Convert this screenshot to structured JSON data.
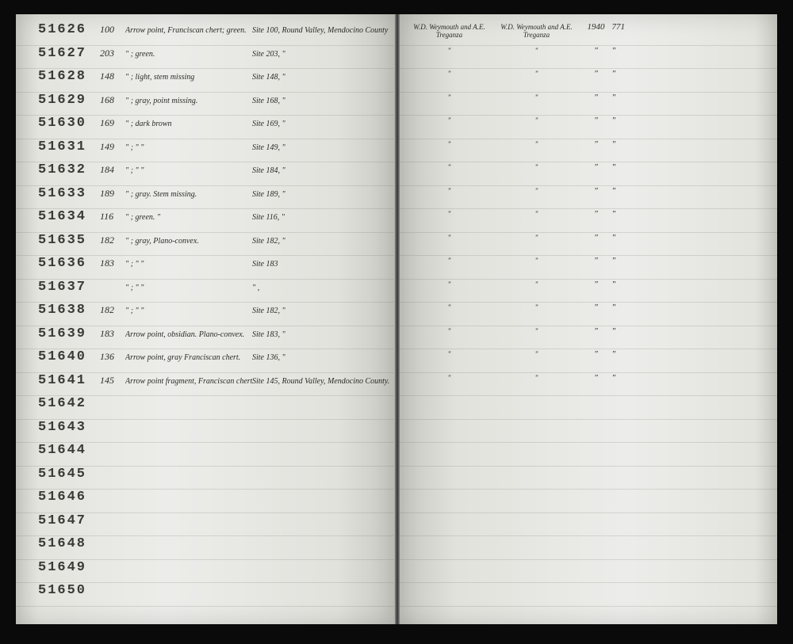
{
  "ledger": {
    "left_rows": [
      {
        "num": "51626",
        "site": "100",
        "desc": "Arrow point, Franciscan chert; green.",
        "loc": "Site 100, Round Valley, Mendocino County"
      },
      {
        "num": "51627",
        "site": "203",
        "desc": "\" ; green.",
        "loc": "Site 203, \""
      },
      {
        "num": "51628",
        "site": "148",
        "desc": "\" ; light, stem missing",
        "loc": "Site 148, \""
      },
      {
        "num": "51629",
        "site": "168",
        "desc": "\" ; gray, point missing.",
        "loc": "Site 168, \""
      },
      {
        "num": "51630",
        "site": "169",
        "desc": "\" ; dark brown",
        "loc": "Site 169, \""
      },
      {
        "num": "51631",
        "site": "149",
        "desc": "\" ; \"  \"",
        "loc": "Site 149, \""
      },
      {
        "num": "51632",
        "site": "184",
        "desc": "\" ; \"  \"",
        "loc": "Site 184, \""
      },
      {
        "num": "51633",
        "site": "189",
        "desc": "\" ; gray. Stem missing.",
        "loc": "Site 189, \""
      },
      {
        "num": "51634",
        "site": "116",
        "desc": "\" ; green. \"",
        "loc": "Site 116, \""
      },
      {
        "num": "51635",
        "site": "182",
        "desc": "\" ; gray, Plano-convex.",
        "loc": "Site 182, \""
      },
      {
        "num": "51636",
        "site": "183",
        "desc": "\" ; \"  \"",
        "loc": "Site 183"
      },
      {
        "num": "51637",
        "site": "",
        "desc": "\" ; \"  \"",
        "loc": "\"  ,"
      },
      {
        "num": "51638",
        "site": "182",
        "desc": "\" ; \"  \"",
        "loc": "Site 182, \""
      },
      {
        "num": "51639",
        "site": "183",
        "desc": "Arrow point, obsidian. Plano-convex.",
        "loc": "Site 183, \""
      },
      {
        "num": "51640",
        "site": "136",
        "desc": "Arrow point, gray Franciscan chert.",
        "loc": "Site 136, \""
      },
      {
        "num": "51641",
        "site": "145",
        "desc": "Arrow point fragment, Franciscan chert.",
        "loc": "Site 145, Round Valley, Mendocino County."
      },
      {
        "num": "51642",
        "site": "",
        "desc": "",
        "loc": ""
      },
      {
        "num": "51643",
        "site": "",
        "desc": "",
        "loc": ""
      },
      {
        "num": "51644",
        "site": "",
        "desc": "",
        "loc": ""
      },
      {
        "num": "51645",
        "site": "",
        "desc": "",
        "loc": ""
      },
      {
        "num": "51646",
        "site": "",
        "desc": "",
        "loc": ""
      },
      {
        "num": "51647",
        "site": "",
        "desc": "",
        "loc": ""
      },
      {
        "num": "51648",
        "site": "",
        "desc": "",
        "loc": ""
      },
      {
        "num": "51649",
        "site": "",
        "desc": "",
        "loc": ""
      },
      {
        "num": "51650",
        "site": "",
        "desc": "",
        "loc": ""
      }
    ],
    "right_rows": [
      {
        "collector": "W.D. Weymouth and A.E. Treganza",
        "donor": "W.D. Weymouth and A.E. Treganza",
        "year": "1940",
        "acc": "771"
      },
      {
        "collector": "\"",
        "donor": "\"",
        "year": "\"",
        "acc": "\""
      },
      {
        "collector": "\"",
        "donor": "\"",
        "year": "\"",
        "acc": "\""
      },
      {
        "collector": "\"",
        "donor": "\"",
        "year": "\"",
        "acc": "\""
      },
      {
        "collector": "\"",
        "donor": "\"",
        "year": "\"",
        "acc": "\""
      },
      {
        "collector": "\"",
        "donor": "\"",
        "year": "\"",
        "acc": "\""
      },
      {
        "collector": "\"",
        "donor": "\"",
        "year": "\"",
        "acc": "\""
      },
      {
        "collector": "\"",
        "donor": "\"",
        "year": "\"",
        "acc": "\""
      },
      {
        "collector": "\"",
        "donor": "\"",
        "year": "\"",
        "acc": "\""
      },
      {
        "collector": "\"",
        "donor": "\"",
        "year": "\"",
        "acc": "\""
      },
      {
        "collector": "\"",
        "donor": "\"",
        "year": "\"",
        "acc": "\""
      },
      {
        "collector": "\"",
        "donor": "\"",
        "year": "\"",
        "acc": "\""
      },
      {
        "collector": "\"",
        "donor": "\"",
        "year": "\"",
        "acc": "\""
      },
      {
        "collector": "\"",
        "donor": "\"",
        "year": "\"",
        "acc": "\""
      },
      {
        "collector": "\"",
        "donor": "\"",
        "year": "\"",
        "acc": "\""
      },
      {
        "collector": "\"",
        "donor": "\"",
        "year": "\"",
        "acc": "\""
      },
      {
        "collector": "",
        "donor": "",
        "year": "",
        "acc": ""
      },
      {
        "collector": "",
        "donor": "",
        "year": "",
        "acc": ""
      },
      {
        "collector": "",
        "donor": "",
        "year": "",
        "acc": ""
      },
      {
        "collector": "",
        "donor": "",
        "year": "",
        "acc": ""
      },
      {
        "collector": "",
        "donor": "",
        "year": "",
        "acc": ""
      },
      {
        "collector": "",
        "donor": "",
        "year": "",
        "acc": ""
      },
      {
        "collector": "",
        "donor": "",
        "year": "",
        "acc": ""
      },
      {
        "collector": "",
        "donor": "",
        "year": "",
        "acc": ""
      },
      {
        "collector": "",
        "donor": "",
        "year": "",
        "acc": ""
      }
    ]
  },
  "colors": {
    "page_bg": "#ececea",
    "text_dark": "#2a2a26",
    "stamp": "#3a3a36",
    "rule": "rgba(100,100,90,0.18)",
    "frame": "#0a0a0a"
  }
}
